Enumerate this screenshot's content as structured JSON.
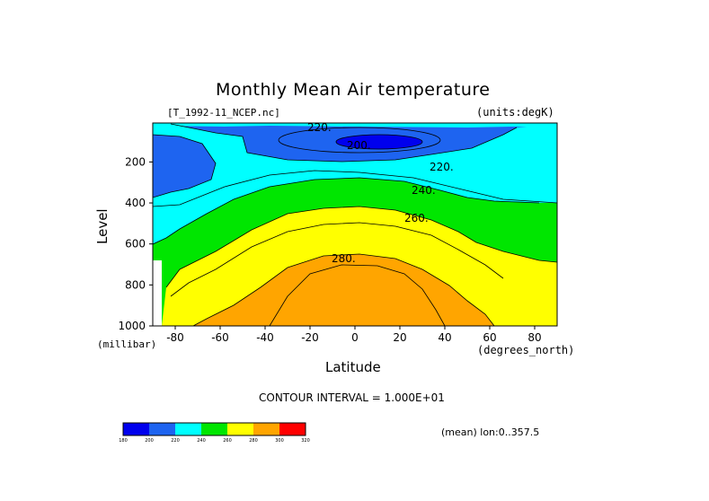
{
  "chart_data": {
    "type": "heatmap",
    "title": "Monthly Mean Air temperature",
    "file_label": "[T_1992-11_NCEP.nc]",
    "units_label": "(units:degK)",
    "xlabel": "Latitude",
    "xunits": "(degrees_north)",
    "ylabel": "Level",
    "yunits": "(millibar)",
    "x_ticks": [
      -80,
      -60,
      -40,
      -20,
      0,
      20,
      40,
      60,
      80
    ],
    "y_ticks": [
      200,
      400,
      600,
      800,
      1000
    ],
    "xlim": [
      -90,
      90
    ],
    "ylim": [
      1000,
      10
    ],
    "contour_interval_text": "CONTOUR INTERVAL = 1.000E+01",
    "contour_labels": [
      "220.",
      "200.",
      "220.",
      "240.",
      "260.",
      "280."
    ],
    "mean_text": "(mean) lon:0..357.5",
    "levels": [
      {
        "from": 180,
        "to": 200,
        "color": "#0000ee"
      },
      {
        "from": 200,
        "to": 220,
        "color": "#1e64f0"
      },
      {
        "from": 220,
        "to": 240,
        "color": "#00ffff"
      },
      {
        "from": 240,
        "to": 260,
        "color": "#00e600"
      },
      {
        "from": 260,
        "to": 280,
        "color": "#ffff00"
      },
      {
        "from": 280,
        "to": 300,
        "color": "#ffa500"
      },
      {
        "from": 300,
        "to": 320,
        "color": "#ff0000"
      }
    ],
    "colorbar_ticks": [
      "180",
      "200",
      "220",
      "240",
      "260",
      "280",
      "300",
      "320"
    ]
  }
}
